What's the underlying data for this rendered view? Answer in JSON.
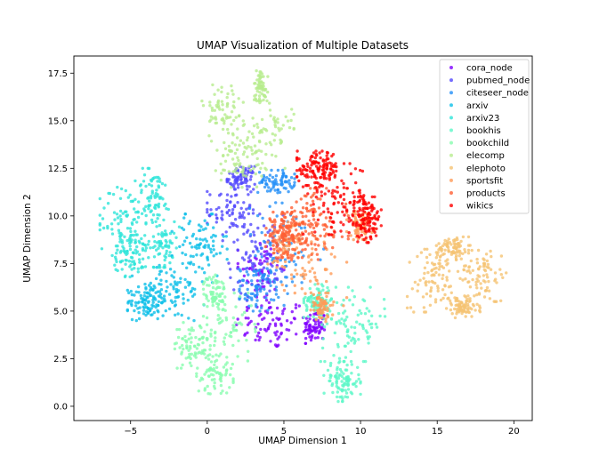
{
  "chart_data": {
    "type": "scatter",
    "title": "UMAP Visualization of Multiple Datasets",
    "xlabel": "UMAP Dimension 1",
    "ylabel": "UMAP Dimension 2",
    "xlim": [
      -8.7,
      21.2
    ],
    "ylim": [
      -0.75,
      18.4
    ],
    "xticks": [
      -5,
      0,
      5,
      10,
      15,
      20
    ],
    "xtick_labels": [
      "−5",
      "0",
      "5",
      "10",
      "15",
      "20"
    ],
    "yticks": [
      0.0,
      2.5,
      5.0,
      7.5,
      10.0,
      12.5,
      15.0,
      17.5
    ],
    "ytick_labels": [
      "0.0",
      "2.5",
      "5.0",
      "7.5",
      "10.0",
      "12.5",
      "15.0",
      "17.5"
    ],
    "grid": false,
    "legend_position": "upper right",
    "marker_alpha": 0.8,
    "series": [
      {
        "name": "cora_node",
        "color": "#8000ff",
        "n": 220,
        "blobs": [
          [
            4.2,
            4.3,
            1.6,
            0.9
          ],
          [
            3.5,
            7.0,
            1.0,
            1.4
          ],
          [
            7.0,
            4.2,
            0.5,
            0.6
          ]
        ]
      },
      {
        "name": "pubmed_node",
        "color": "#5249fe",
        "n": 230,
        "blobs": [
          [
            1.5,
            10.3,
            1.0,
            1.1
          ],
          [
            3.2,
            8.0,
            1.2,
            1.4
          ],
          [
            2.2,
            12.0,
            0.6,
            0.4
          ]
        ]
      },
      {
        "name": "citeseer_node",
        "color": "#2490f8",
        "n": 220,
        "blobs": [
          [
            5.0,
            8.0,
            1.8,
            1.8
          ],
          [
            4.5,
            11.8,
            0.8,
            0.4
          ],
          [
            3.3,
            6.2,
            0.8,
            0.8
          ]
        ]
      },
      {
        "name": "arxiv",
        "color": "#0ebfe8",
        "n": 260,
        "blobs": [
          [
            -2.5,
            6.0,
            1.6,
            1.0
          ],
          [
            -0.5,
            8.3,
            1.2,
            1.2
          ],
          [
            -4.0,
            5.5,
            0.8,
            0.6
          ]
        ]
      },
      {
        "name": "arxiv23",
        "color": "#2ee5da",
        "n": 300,
        "blobs": [
          [
            -5.5,
            9.8,
            1.0,
            1.3
          ],
          [
            -3.5,
            11.0,
            0.8,
            1.0
          ],
          [
            -5.0,
            8.0,
            0.8,
            0.8
          ],
          [
            -3.0,
            8.5,
            0.8,
            0.8
          ]
        ]
      },
      {
        "name": "bookhis",
        "color": "#5cf7c8",
        "n": 280,
        "blobs": [
          [
            9.5,
            4.3,
            1.4,
            1.3
          ],
          [
            8.8,
            1.3,
            0.8,
            0.7
          ],
          [
            7.2,
            5.5,
            0.6,
            0.6
          ]
        ]
      },
      {
        "name": "bookchild",
        "color": "#88fdaf",
        "n": 280,
        "blobs": [
          [
            1.2,
            4.0,
            1.3,
            1.3
          ],
          [
            -1.0,
            3.2,
            0.8,
            0.8
          ],
          [
            0.5,
            1.7,
            0.8,
            0.7
          ],
          [
            0.5,
            6.0,
            0.5,
            0.6
          ]
        ]
      },
      {
        "name": "elecomp",
        "color": "#b8ec8f",
        "n": 270,
        "blobs": [
          [
            1.0,
            15.5,
            0.9,
            1.1
          ],
          [
            4.0,
            14.3,
            1.1,
            1.2
          ],
          [
            2.2,
            13.0,
            1.1,
            1.0
          ],
          [
            3.5,
            16.8,
            0.3,
            0.6
          ]
        ]
      },
      {
        "name": "elephoto",
        "color": "#f5c373",
        "n": 330,
        "blobs": [
          [
            14.7,
            6.6,
            1.1,
            1.1
          ],
          [
            18.0,
            7.0,
            1.0,
            1.0
          ],
          [
            16.0,
            8.3,
            0.7,
            0.4
          ],
          [
            16.6,
            5.2,
            0.8,
            0.4
          ]
        ]
      },
      {
        "name": "sportsfit",
        "color": "#ff9b58",
        "n": 230,
        "blobs": [
          [
            7.0,
            7.0,
            1.4,
            1.3
          ],
          [
            5.0,
            8.5,
            0.7,
            0.8
          ],
          [
            7.5,
            5.2,
            0.5,
            0.5
          ],
          [
            10.0,
            9.5,
            0.6,
            0.5
          ]
        ]
      },
      {
        "name": "products",
        "color": "#ff5f33",
        "n": 250,
        "blobs": [
          [
            6.8,
            9.5,
            1.6,
            1.3
          ],
          [
            5.0,
            9.0,
            0.8,
            0.8
          ]
        ]
      },
      {
        "name": "wikics",
        "color": "#ff0000",
        "n": 330,
        "blobs": [
          [
            8.5,
            10.8,
            1.5,
            1.3
          ],
          [
            7.2,
            12.5,
            0.9,
            0.6
          ],
          [
            10.3,
            9.8,
            0.7,
            0.8
          ]
        ]
      }
    ]
  },
  "legend": {
    "items": [
      {
        "label": "cora_node",
        "color": "#8000ff"
      },
      {
        "label": "pubmed_node",
        "color": "#5249fe"
      },
      {
        "label": "citeseer_node",
        "color": "#2490f8"
      },
      {
        "label": "arxiv",
        "color": "#0ebfe8"
      },
      {
        "label": "arxiv23",
        "color": "#2ee5da"
      },
      {
        "label": "bookhis",
        "color": "#5cf7c8"
      },
      {
        "label": "bookchild",
        "color": "#88fdaf"
      },
      {
        "label": "elecomp",
        "color": "#b8ec8f"
      },
      {
        "label": "elephoto",
        "color": "#f5c373"
      },
      {
        "label": "sportsfit",
        "color": "#ff9b58"
      },
      {
        "label": "products",
        "color": "#ff5f33"
      },
      {
        "label": "wikics",
        "color": "#ff0000"
      }
    ]
  }
}
